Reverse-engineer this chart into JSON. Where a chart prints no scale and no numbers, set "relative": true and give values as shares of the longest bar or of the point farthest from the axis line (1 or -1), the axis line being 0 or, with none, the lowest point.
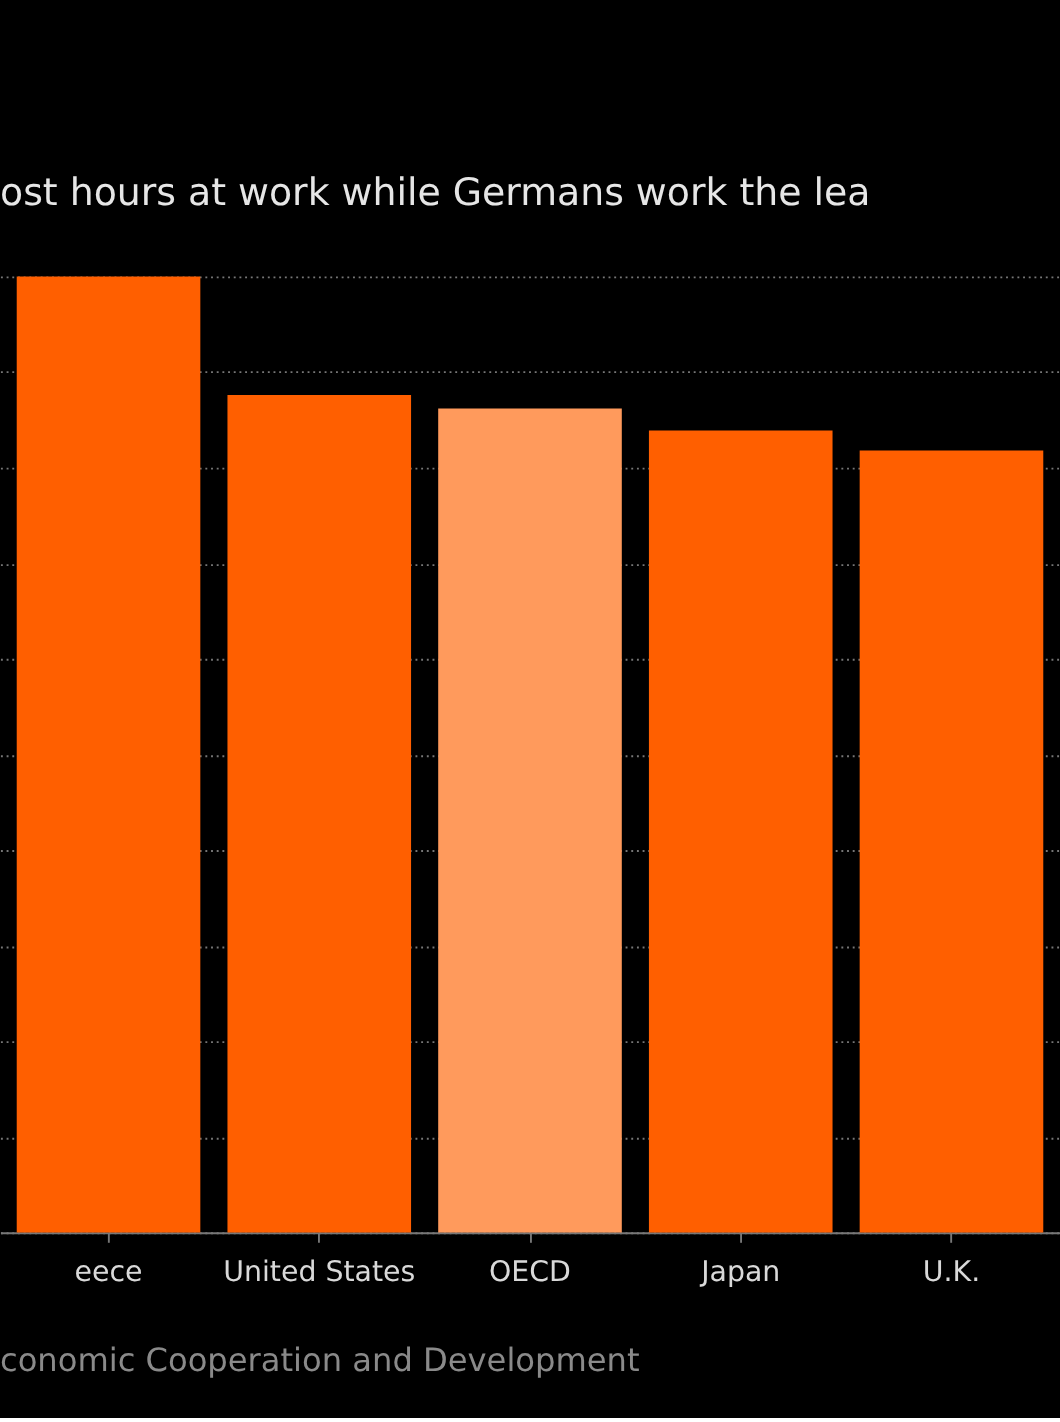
{
  "chart_data": {
    "type": "bar",
    "title": "ost hours at work while Germans work the lea",
    "categories": [
      "eece",
      "United States",
      "OECD",
      "Japan",
      "U.K."
    ],
    "values": [
      1,
      0.876,
      0.862,
      0.839,
      0.818
    ],
    "colors": [
      "#ff5f00",
      "#ff5f00",
      "#ff9a5c",
      "#ff5f00",
      "#ff5f00"
    ],
    "relative": true,
    "grid": "y",
    "annotations": [
      "conomic Cooperation and Development"
    ]
  }
}
